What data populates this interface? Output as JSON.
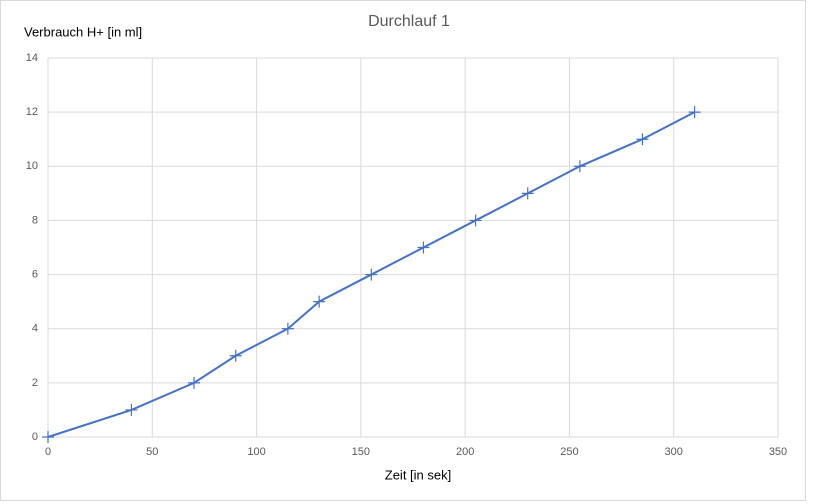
{
  "chart_data": {
    "type": "line",
    "title": "Durchlauf 1",
    "x_label": "Zeit [in sek]",
    "y_label": "Verbrauch H+ [in ml]",
    "x": [
      0,
      40,
      70,
      90,
      115,
      130,
      155,
      180,
      205,
      230,
      255,
      285,
      310
    ],
    "series": [
      {
        "name": "Verbrauch H+",
        "color": "#4472c4",
        "values": [
          0,
          1,
          2,
          3,
          4,
          5,
          6,
          7,
          8,
          9,
          10,
          11,
          12
        ]
      }
    ],
    "xlim": [
      0,
      350
    ],
    "xticks": [
      0,
      50,
      100,
      150,
      200,
      250,
      300,
      350
    ],
    "ylim": [
      0,
      14
    ],
    "yticks": [
      0,
      2,
      4,
      6,
      8,
      10,
      12,
      14
    ],
    "grid": true,
    "marker": "plus"
  }
}
